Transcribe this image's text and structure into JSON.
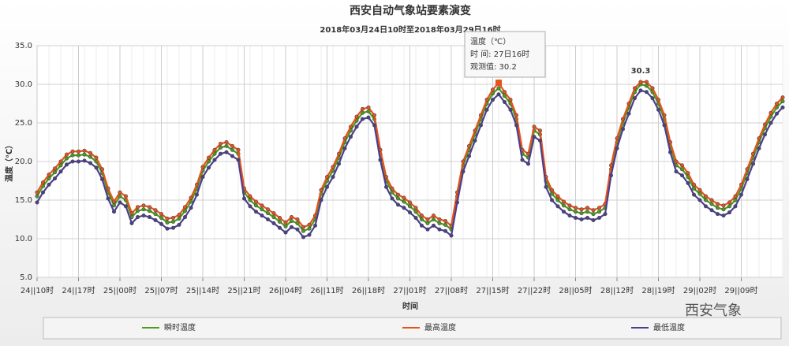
{
  "chart_data": {
    "type": "line",
    "title": "西安自动气象站要素演变",
    "subtitle": "2018年03月24日10时至2018年03月29日16时",
    "x_label": "时间",
    "y_label": "温度（℃）",
    "categories": [
      "24||10时",
      null,
      null,
      null,
      null,
      null,
      null,
      "24||17时",
      null,
      null,
      null,
      null,
      null,
      null,
      "25||00时",
      null,
      null,
      null,
      null,
      null,
      null,
      "25||07时",
      null,
      null,
      null,
      null,
      null,
      null,
      "25||14时",
      null,
      null,
      null,
      null,
      null,
      null,
      "25||21时",
      null,
      null,
      null,
      null,
      null,
      null,
      "26||04时",
      null,
      null,
      null,
      null,
      null,
      null,
      "26||11时",
      null,
      null,
      null,
      null,
      null,
      null,
      "26||18时",
      null,
      null,
      null,
      null,
      null,
      null,
      "27||01时",
      null,
      null,
      null,
      null,
      null,
      null,
      "27||08时",
      null,
      null,
      null,
      null,
      null,
      null,
      "27||15时",
      null,
      null,
      null,
      null,
      null,
      null,
      "27||22时",
      null,
      null,
      null,
      null,
      null,
      null,
      "28||05时",
      null,
      null,
      null,
      null,
      null,
      null,
      "28||12时",
      null,
      null,
      null,
      null,
      null,
      null,
      "28||19时",
      null,
      null,
      null,
      null,
      null,
      null,
      "29||02时",
      null,
      null,
      null,
      null,
      null,
      null,
      "29||09时",
      null,
      null,
      null,
      null,
      null,
      null,
      null
    ],
    "series": [
      {
        "name": "瞬时温度",
        "color": "#4e9a1c",
        "values": [
          15.5,
          16.8,
          17.8,
          18.6,
          19.5,
          20.4,
          20.8,
          20.8,
          20.9,
          20.6,
          20.0,
          18.5,
          16.0,
          14.3,
          15.5,
          15.0,
          12.8,
          13.6,
          13.8,
          13.6,
          13.2,
          12.7,
          12.1,
          12.2,
          12.6,
          13.6,
          14.8,
          16.5,
          18.8,
          20.0,
          21.0,
          21.8,
          22.0,
          21.5,
          21.0,
          16.0,
          15.0,
          14.3,
          13.8,
          13.3,
          12.8,
          12.2,
          11.6,
          12.3,
          12.0,
          11.0,
          11.3,
          12.5,
          15.8,
          17.5,
          18.8,
          20.5,
          22.5,
          24.0,
          25.3,
          26.3,
          26.5,
          25.5,
          21.0,
          17.5,
          16.0,
          15.2,
          14.8,
          14.2,
          13.5,
          12.5,
          12.0,
          12.5,
          12.0,
          11.8,
          11.2,
          15.5,
          19.5,
          21.5,
          23.5,
          25.5,
          27.5,
          28.8,
          29.5,
          28.5,
          27.5,
          25.5,
          21.0,
          20.5,
          24.0,
          23.5,
          17.5,
          15.8,
          15.0,
          14.3,
          13.8,
          13.5,
          13.3,
          13.5,
          13.2,
          13.5,
          14.0,
          19.0,
          22.5,
          25.0,
          27.0,
          29.0,
          30.0,
          29.8,
          29.0,
          27.5,
          25.5,
          22.0,
          19.5,
          19.0,
          18.0,
          16.5,
          15.8,
          15.0,
          14.5,
          14.0,
          13.8,
          14.2,
          15.0,
          16.5,
          18.5,
          20.5,
          22.5,
          24.3,
          25.8,
          27.0,
          27.8
        ]
      },
      {
        "name": "最高温度",
        "color": "#e8521c",
        "values": [
          16.0,
          17.3,
          18.3,
          19.1,
          20.0,
          20.9,
          21.3,
          21.3,
          21.4,
          21.1,
          20.5,
          19.0,
          16.5,
          14.8,
          16.0,
          15.5,
          13.3,
          14.1,
          14.3,
          14.1,
          13.7,
          13.2,
          12.6,
          12.7,
          13.1,
          14.1,
          15.3,
          17.0,
          19.3,
          20.5,
          21.5,
          22.3,
          22.5,
          22.0,
          21.5,
          16.5,
          15.5,
          14.8,
          14.3,
          13.8,
          13.3,
          12.7,
          12.1,
          12.8,
          12.5,
          11.5,
          11.8,
          13.0,
          16.3,
          18.0,
          19.3,
          21.0,
          23.0,
          24.5,
          25.8,
          26.8,
          27.0,
          26.0,
          21.5,
          18.0,
          16.5,
          15.7,
          15.3,
          14.7,
          14.0,
          13.0,
          12.5,
          13.0,
          12.5,
          12.3,
          11.7,
          16.0,
          20.0,
          22.0,
          24.0,
          26.0,
          28.0,
          29.3,
          30.2,
          29.0,
          28.0,
          26.0,
          21.5,
          21.0,
          24.5,
          24.0,
          18.0,
          16.3,
          15.5,
          14.8,
          14.3,
          14.0,
          13.8,
          14.0,
          13.7,
          14.0,
          14.5,
          19.5,
          23.0,
          25.5,
          27.5,
          29.5,
          30.3,
          30.3,
          29.5,
          28.0,
          26.0,
          22.5,
          20.0,
          19.5,
          18.5,
          17.0,
          16.3,
          15.5,
          15.0,
          14.5,
          14.3,
          14.7,
          15.5,
          17.0,
          19.0,
          21.0,
          23.0,
          24.8,
          26.3,
          27.5,
          28.3
        ]
      },
      {
        "name": "最低温度",
        "color": "#4b3f8f",
        "values": [
          14.7,
          16.0,
          17.0,
          17.8,
          18.7,
          19.6,
          20.0,
          20.0,
          20.1,
          19.8,
          19.2,
          17.7,
          15.2,
          13.5,
          14.7,
          14.2,
          12.0,
          12.8,
          13.0,
          12.8,
          12.4,
          11.9,
          11.3,
          11.4,
          11.8,
          12.8,
          14.0,
          15.7,
          18.0,
          19.2,
          20.2,
          21.0,
          21.2,
          20.7,
          20.2,
          15.2,
          14.2,
          13.5,
          13.0,
          12.5,
          12.0,
          11.4,
          10.8,
          11.5,
          11.2,
          10.2,
          10.5,
          11.7,
          15.0,
          16.7,
          18.0,
          19.7,
          21.7,
          23.2,
          24.5,
          25.5,
          25.7,
          24.7,
          20.2,
          16.7,
          15.2,
          14.4,
          14.0,
          13.4,
          12.7,
          11.7,
          11.2,
          11.7,
          11.2,
          11.0,
          10.4,
          14.7,
          18.7,
          20.7,
          22.7,
          24.7,
          26.7,
          28.0,
          28.7,
          27.7,
          26.7,
          24.7,
          20.2,
          19.7,
          23.2,
          22.7,
          16.7,
          15.0,
          14.2,
          13.5,
          13.0,
          12.7,
          12.5,
          12.7,
          12.4,
          12.7,
          13.2,
          18.2,
          21.7,
          24.2,
          26.2,
          28.2,
          29.2,
          29.0,
          28.2,
          26.7,
          24.7,
          21.2,
          18.7,
          18.2,
          17.2,
          15.7,
          15.0,
          14.2,
          13.7,
          13.2,
          13.0,
          13.4,
          14.2,
          15.7,
          17.7,
          19.7,
          21.7,
          23.5,
          25.0,
          26.2,
          27.0
        ]
      }
    ],
    "ylim": [
      5,
      35
    ],
    "yticks": [
      {
        "value": 5,
        "label": "5.0"
      },
      {
        "value": 10,
        "label": "10.0"
      },
      {
        "value": 15,
        "label": "15.0"
      },
      {
        "value": 20,
        "label": "20.0"
      },
      {
        "value": 25,
        "label": "25.0"
      },
      {
        "value": 30,
        "label": "30.0"
      },
      {
        "value": 35,
        "label": "35.0"
      }
    ],
    "grid": true,
    "legend": "bottom",
    "annotation": "30.3",
    "tooltip": {
      "title": "温度（℃）",
      "time": "时 间: 27日16时",
      "value": "观测值: 30.2"
    },
    "watermark": "西安气象"
  }
}
